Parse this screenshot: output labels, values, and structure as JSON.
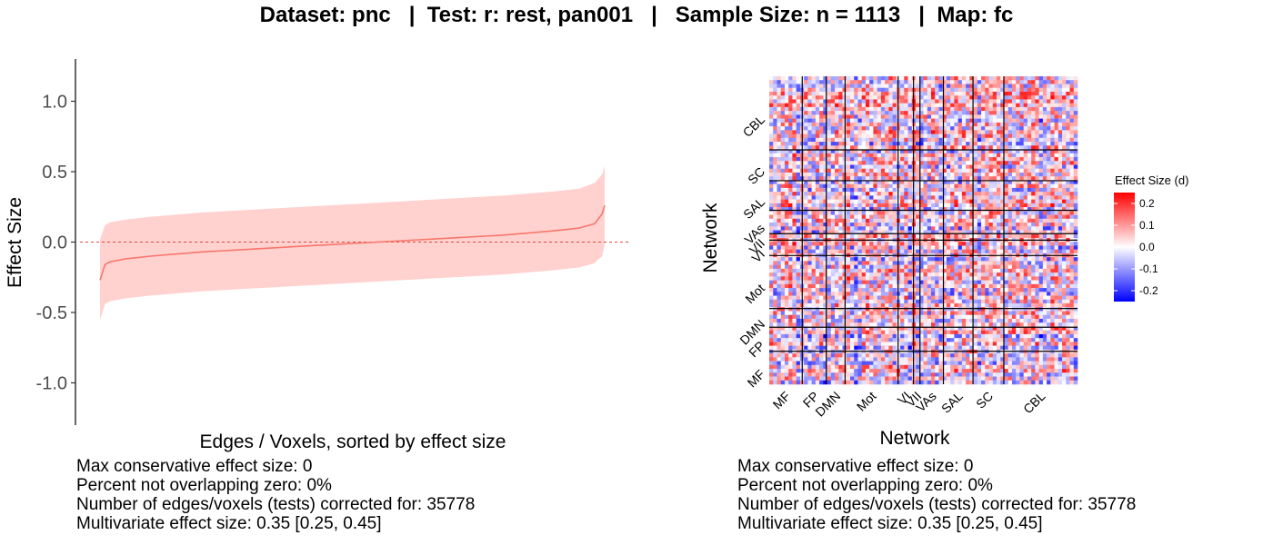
{
  "title": "Dataset: pnc   |  Test: r: rest, pan001   |   Sample Size: n = 1113   |  Map: fc",
  "colors": {
    "line": "#f8766d",
    "ribbon": "#ffd2cf",
    "zero_line": "#e0483e",
    "heat_low": "#0000ff",
    "heat_mid": "#ffffff",
    "heat_high": "#ff0000",
    "tick_text": "#4d4d4d"
  },
  "chart_data": [
    {
      "type": "line",
      "xlabel": "Edges / Voxels, sorted by effect size",
      "ylabel": "Effect Size",
      "ylim": [
        -1.3,
        1.3
      ],
      "y_ticks": [
        1.0,
        0.5,
        0.0,
        -0.5,
        -1.0
      ],
      "y_tick_labels": [
        "1.0",
        "0.5",
        "0.0",
        "-0.5",
        "-1.0"
      ],
      "x_ticks": [],
      "grid": false,
      "reference_line": {
        "y": 0,
        "style": "dashed"
      },
      "series": [
        {
          "x": [
            0,
            0.01,
            0.02,
            0.05,
            0.1,
            0.2,
            0.3,
            0.4,
            0.5,
            0.6,
            0.7,
            0.8,
            0.9,
            0.95,
            0.98,
            0.995,
            1.0
          ],
          "y": [
            -0.27,
            -0.16,
            -0.14,
            -0.12,
            -0.1,
            -0.07,
            -0.05,
            -0.03,
            -0.01,
            0.01,
            0.03,
            0.05,
            0.08,
            0.1,
            0.13,
            0.2,
            0.26
          ],
          "ci_lower": [
            -0.55,
            -0.44,
            -0.42,
            -0.4,
            -0.38,
            -0.35,
            -0.33,
            -0.31,
            -0.29,
            -0.27,
            -0.25,
            -0.23,
            -0.2,
            -0.18,
            -0.15,
            -0.1,
            -0.02
          ],
          "ci_upper": [
            0.02,
            0.12,
            0.14,
            0.16,
            0.18,
            0.21,
            0.23,
            0.25,
            0.27,
            0.29,
            0.31,
            0.33,
            0.36,
            0.38,
            0.42,
            0.48,
            0.54
          ]
        }
      ]
    },
    {
      "type": "heatmap",
      "xlabel": "Network",
      "ylabel": "Network",
      "x_networks": [
        "MF",
        "FP",
        "DMN",
        "Mot",
        "VI",
        "VII",
        "VAs",
        "SAL",
        "SC",
        "CBL"
      ],
      "y_networks": [
        "MF",
        "FP",
        "DMN",
        "Mot",
        "VI",
        "VII",
        "VAs",
        "SAL",
        "SC",
        "CBL"
      ],
      "network_boundaries": [
        0.107,
        0.185,
        0.246,
        0.418,
        0.468,
        0.489,
        0.565,
        0.661,
        0.761
      ],
      "legend": {
        "title": "Effect Size (d)",
        "ticks": [
          0.2,
          0.1,
          0.0,
          -0.1,
          -0.2
        ],
        "tick_labels": [
          "0.2",
          "0.1",
          "0.0",
          "-0.1",
          "-0.2"
        ],
        "range": [
          -0.25,
          0.25
        ],
        "placement": "right"
      }
    }
  ],
  "stats_left": [
    "Max conservative effect size: 0",
    "Percent not overlapping zero: 0%",
    "Number of edges/voxels (tests) corrected for: 35778",
    "Multivariate effect size: 0.35 [0.25, 0.45]"
  ],
  "stats_right": [
    "Max conservative effect size: 0",
    "Percent not overlapping zero: 0%",
    "Number of edges/voxels (tests) corrected for: 35778",
    "Multivariate effect size: 0.35 [0.25, 0.45]"
  ]
}
